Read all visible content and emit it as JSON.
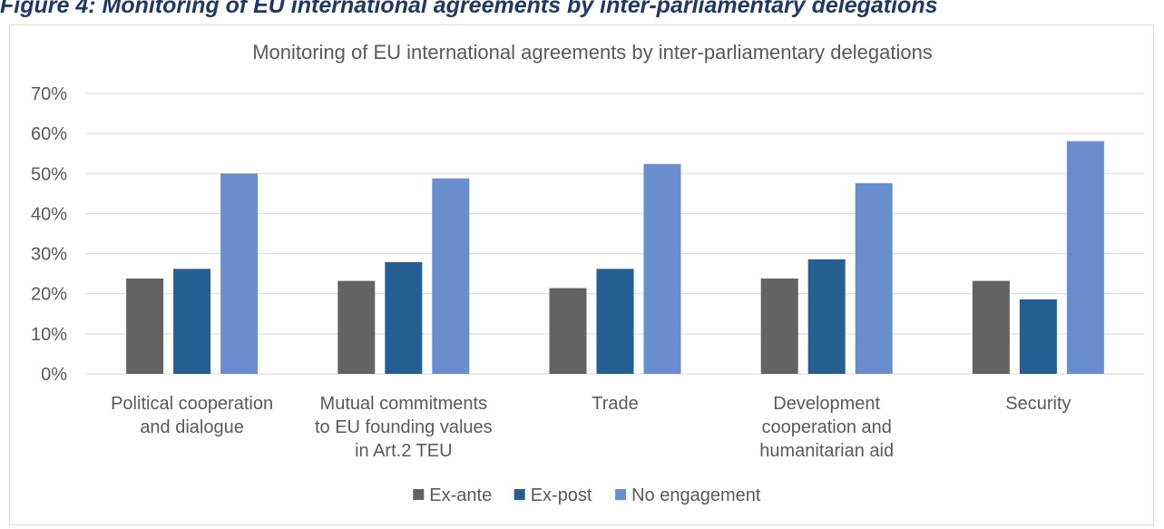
{
  "figure_caption": "Figure 4: Monitoring of EU international agreements by inter-parliamentary delegations",
  "colors": {
    "ex_ante": "#636363",
    "ex_post": "#255e91",
    "no_engagement": "#698ed0",
    "grid": "#d9d9d9",
    "text": "#595959"
  },
  "chart_data": {
    "type": "bar",
    "title": "Monitoring of EU international agreements by inter-parliamentary delegations",
    "xlabel": "",
    "ylabel": "",
    "ylim": [
      0,
      0.7
    ],
    "yticks": [
      "0%",
      "10%",
      "20%",
      "30%",
      "40%",
      "50%",
      "60%",
      "70%"
    ],
    "grid": true,
    "legend": "bottom",
    "categories": [
      [
        "Political cooperation",
        "and dialogue"
      ],
      [
        "Mutual commitments",
        "to EU founding values",
        "in Art.2 TEU"
      ],
      [
        "Trade"
      ],
      [
        "Development",
        "cooperation and",
        "humanitarian aid"
      ],
      [
        "Security"
      ]
    ],
    "series": [
      {
        "name": "Ex-ante",
        "color": "#636363",
        "values": [
          0.238,
          0.232,
          0.214,
          0.238,
          0.232
        ]
      },
      {
        "name": "Ex-post",
        "color": "#255e91",
        "values": [
          0.262,
          0.279,
          0.262,
          0.286,
          0.186
        ]
      },
      {
        "name": "No engagement",
        "color": "#698ed0",
        "values": [
          0.5,
          0.488,
          0.524,
          0.476,
          0.581
        ]
      }
    ]
  }
}
